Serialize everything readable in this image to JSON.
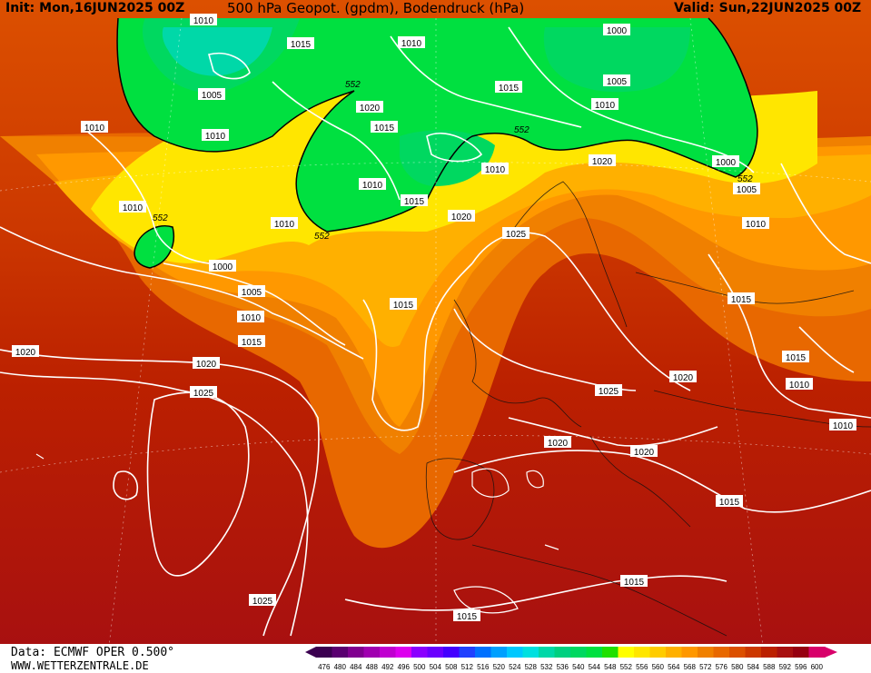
{
  "header": {
    "init": "Init: Mon,16JUN2025 00Z",
    "title": "500 hPa Geopot. (gpdm), Bodendruck (hPa)",
    "valid": "Valid: Sun,22JUN2025 00Z"
  },
  "footer": {
    "data_source": "Data: ECMWF OPER 0.500°",
    "website": "WWW.WETTERZENTRALE.DE"
  },
  "colorbar": {
    "values": [
      "476",
      "480",
      "484",
      "488",
      "492",
      "496",
      "500",
      "504",
      "508",
      "512",
      "516",
      "520",
      "524",
      "528",
      "532",
      "536",
      "540",
      "544",
      "548",
      "552",
      "556",
      "560",
      "564",
      "568",
      "572",
      "576",
      "580",
      "584",
      "588",
      "592",
      "596",
      "600"
    ],
    "colors": [
      "#3b0050",
      "#5a0070",
      "#80008f",
      "#a000b0",
      "#c000d0",
      "#dd00ee",
      "#8a00ff",
      "#6a00ff",
      "#4400ff",
      "#2040ff",
      "#0070ff",
      "#00a0ff",
      "#00c8ff",
      "#00e0e0",
      "#00d8a8",
      "#00d080",
      "#00d860",
      "#00e040",
      "#20e000",
      "#ffff00",
      "#ffe600",
      "#ffcc00",
      "#ffb000",
      "#ff9800",
      "#f08000",
      "#e86800",
      "#dc5000",
      "#cc3800",
      "#bb2000",
      "#a81010",
      "#960010",
      "#d8006a"
    ]
  },
  "contour_labels": {
    "gpdm_552": "552",
    "p1000": "1000",
    "p1005": "1005",
    "p1010": "1010",
    "p1015": "1015",
    "p1020": "1020",
    "p1025": "1025"
  }
}
